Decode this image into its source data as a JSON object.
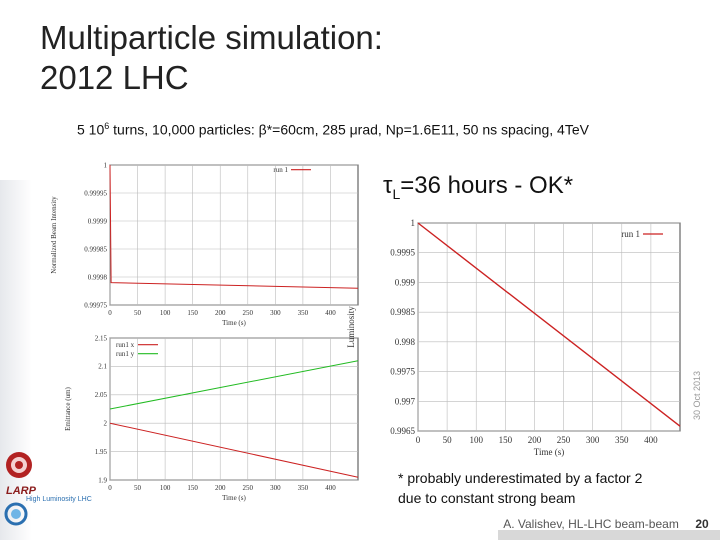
{
  "slide": {
    "title_line1": "Multiparticle simulation:",
    "title_line2": "2012 LHC",
    "subtitle_pre": "5 10",
    "subtitle_sup": "6",
    "subtitle_post": " turns, 10,000 particles: β*=60cm, 285 μrad, Np=1.6E11, 50 ns spacing, 4TeV",
    "tau_main": "τ",
    "tau_sub": "L",
    "tau_rest": "=36 hours - OK*",
    "footnote_line1": "* probably underestimated by a factor 2",
    "footnote_line2": "due to constant strong beam",
    "date": "30 Oct 2013",
    "author": "A. Valishev, HL-LHC beam-beam",
    "page": "20",
    "logo_text": "LARP",
    "hl_text": "High Luminosity LHC"
  },
  "chart_data": [
    {
      "type": "line",
      "title": "",
      "xlabel": "Time (s)",
      "ylabel": "Normalized Beam Intensity",
      "xlim": [
        0,
        450
      ],
      "ylim": [
        0.99975,
        1.0
      ],
      "xticks": [
        "0",
        "50",
        "100",
        "150",
        "200",
        "250",
        "300",
        "350",
        "400"
      ],
      "yticks": [
        "0.99975",
        "0.9998",
        "0.99985",
        "0.9999",
        "0.99995",
        "1"
      ],
      "legend_position": "top-right",
      "series": [
        {
          "name": "run 1",
          "color": "#cc2222",
          "x": [
            0,
            2,
            450
          ],
          "y": [
            1.0,
            0.99979,
            0.99978
          ]
        }
      ],
      "grid": true
    },
    {
      "type": "line",
      "title": "",
      "xlabel": "Time (s)",
      "ylabel": "Emittance (um)",
      "xlim": [
        0,
        450
      ],
      "ylim": [
        1.9,
        2.15
      ],
      "xticks": [
        "0",
        "50",
        "100",
        "150",
        "200",
        "250",
        "300",
        "350",
        "400"
      ],
      "yticks": [
        "1.9",
        "1.95",
        "2",
        "2.05",
        "2.1",
        "2.15"
      ],
      "legend_position": "top-left",
      "series": [
        {
          "name": "run1 x",
          "color": "#cc2222",
          "x": [
            0,
            450
          ],
          "y": [
            2.0,
            1.905
          ]
        },
        {
          "name": "run1 y",
          "color": "#22bb22",
          "x": [
            0,
            450
          ],
          "y": [
            2.025,
            2.11
          ]
        }
      ],
      "grid": true
    },
    {
      "type": "line",
      "title": "",
      "xlabel": "Time (s)",
      "ylabel": "Luminosity",
      "xlim": [
        0,
        450
      ],
      "ylim": [
        0.9965,
        1.0
      ],
      "xticks": [
        "0",
        "50",
        "100",
        "150",
        "200",
        "250",
        "300",
        "350",
        "400"
      ],
      "yticks": [
        "0.9965",
        "0.997",
        "0.9975",
        "0.998",
        "0.9985",
        "0.999",
        "0.9995",
        "1"
      ],
      "legend_position": "top-right",
      "series": [
        {
          "name": "run 1",
          "color": "#cc2222",
          "x": [
            0,
            450
          ],
          "y": [
            1.0,
            0.99658
          ]
        }
      ],
      "grid": true
    }
  ]
}
